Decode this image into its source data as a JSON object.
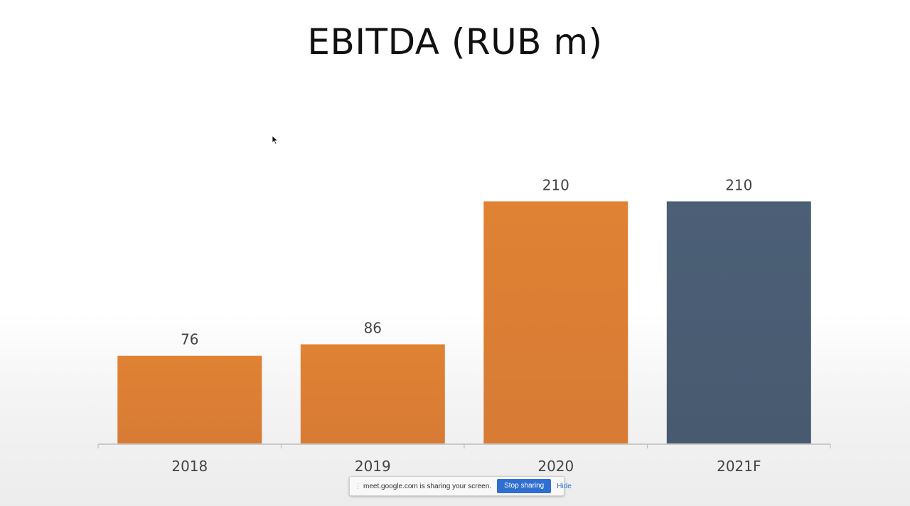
{
  "title": "EBITDA (RUB m)",
  "chart_data": {
    "type": "bar",
    "title": "EBITDA (RUB m)",
    "categories": [
      "2018",
      "2019",
      "2020",
      "2021F"
    ],
    "values": [
      76,
      86,
      210,
      210
    ],
    "data_labels": [
      "76",
      "86",
      "210",
      "210"
    ],
    "colors": [
      "#DD7F34",
      "#DD7F34",
      "#DD7F34",
      "#4A5E75"
    ],
    "ylim": [
      0,
      230
    ],
    "grid": false,
    "legend": "none",
    "xlabel": "",
    "ylabel": ""
  },
  "screen_share": {
    "message": "meet.google.com is sharing your screen.",
    "stop_label": "Stop sharing",
    "hide_label": "Hide",
    "button_color": "#2F6FD1"
  }
}
